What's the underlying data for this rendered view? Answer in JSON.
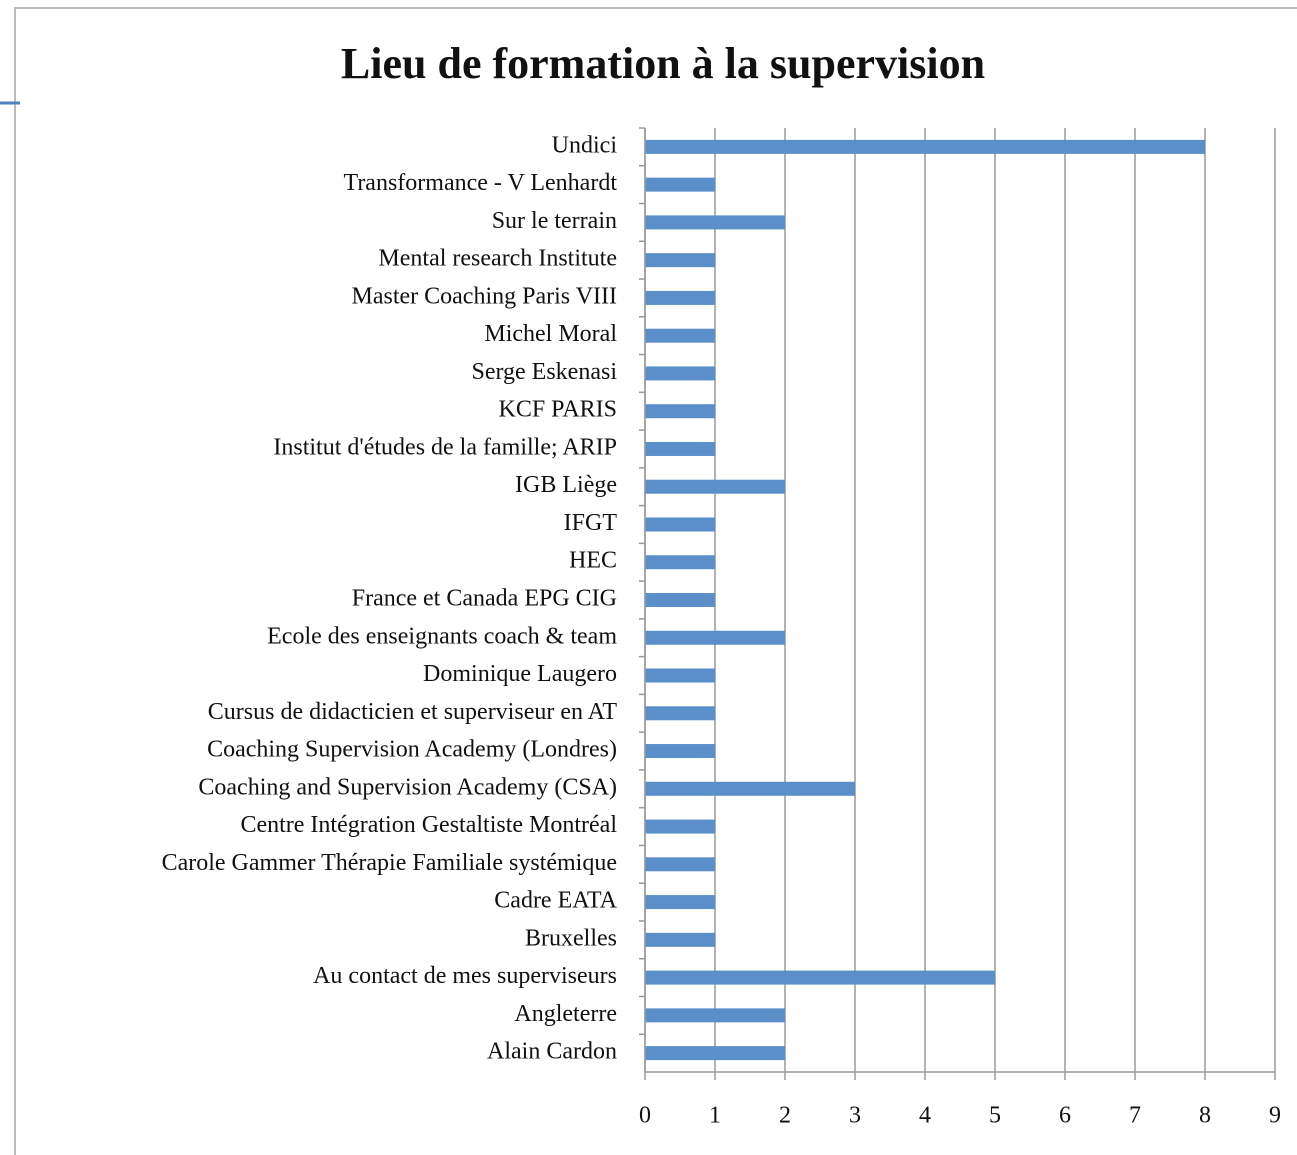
{
  "chart_data": {
    "type": "bar",
    "orientation": "horizontal",
    "title": "Lieu de formation à la supervision",
    "categories": [
      "Undici",
      "Transformance - V Lenhardt",
      "Sur le terrain",
      "Mental research Institute",
      "Master Coaching Paris VIII",
      "Michel Moral",
      "Serge Eskenasi",
      "KCF PARIS",
      "Institut d'études de la famille; ARIP",
      "IGB Liège",
      "IFGT",
      "HEC",
      "France et Canada EPG CIG",
      "Ecole des enseignants coach & team",
      "Dominique Laugero",
      "Cursus de didacticien et superviseur en AT",
      "Coaching Supervision Academy (Londres)",
      "Coaching and Supervision Academy (CSA)",
      "Centre Intégration Gestaltiste Montréal",
      "Carole Gammer Thérapie Familiale systémique",
      "Cadre EATA",
      "Bruxelles",
      "Au contact de mes superviseurs",
      "Angleterre",
      "Alain Cardon"
    ],
    "values": [
      8,
      1,
      2,
      1,
      1,
      1,
      1,
      1,
      1,
      2,
      1,
      1,
      1,
      2,
      1,
      1,
      1,
      3,
      1,
      1,
      1,
      1,
      5,
      2,
      2
    ],
    "color": "#5b8fc9",
    "xlim": [
      0,
      9
    ],
    "xticks": [
      0,
      1,
      2,
      3,
      4,
      5,
      6,
      7,
      8,
      9
    ],
    "grid": true
  }
}
